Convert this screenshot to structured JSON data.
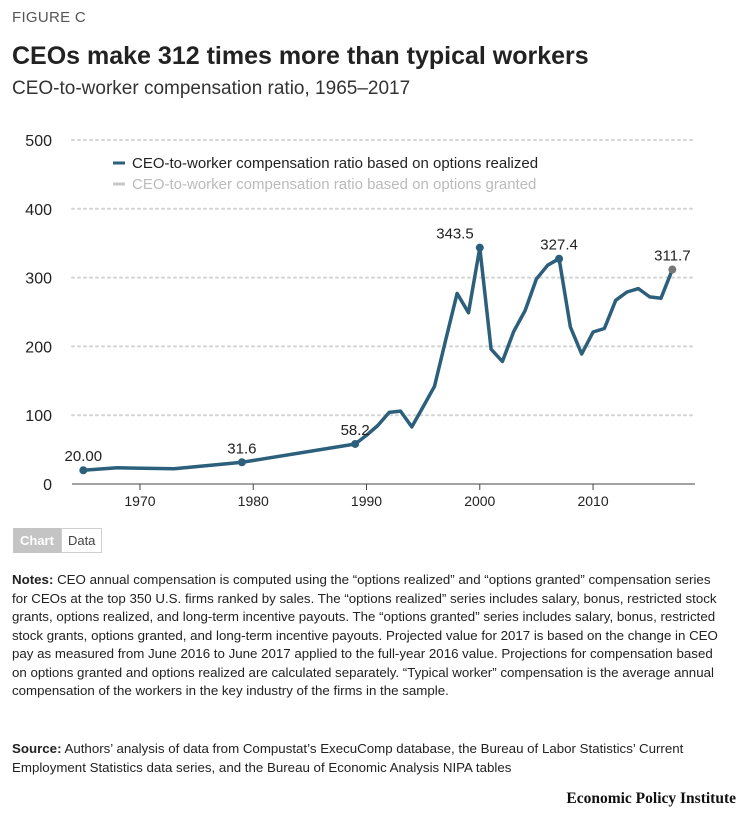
{
  "figure_label": "FIGURE C",
  "title": "CEOs make 312 times more than typical workers",
  "subtitle": "CEO-to-worker compensation ratio, 1965–2017",
  "tabs": {
    "chart": "Chart",
    "data": "Data"
  },
  "notes": {
    "label": "Notes:",
    "text": " CEO annual compensation is computed using the “options realized” and “options granted” compensation series for CEOs at the top 350 U.S. firms ranked by sales. The “options realized” series includes salary, bonus, restricted stock grants, options realized, and long-term incentive payouts. The “options granted” series includes salary, bonus, restricted stock grants, options granted, and long-term incentive payouts. Projected value for 2017 is based on the change in CEO pay as measured from June 2016 to June 2017 applied to the full-year 2016 value. Projections for compensation based on options granted and options realized are calculated separately. “Typical worker” compensation is the average annual compensation of the workers in the key industry of the firms in the sample."
  },
  "source": {
    "label": "Source:",
    "text": " Authors’ analysis of data from Compustat’s ExecuComp database, the Bureau of Labor Statistics’ Current Employment Statistics data series, and the Bureau of Economic Analysis NIPA tables"
  },
  "publisher": "Economic Policy Institute",
  "colors": {
    "realized": "#2c5f7c",
    "granted": "#c7c7c7",
    "projection_point": "#777777",
    "grid": "#d4d4d4",
    "axis": "#444444"
  },
  "chart_data": {
    "type": "line",
    "title": "CEO-to-worker compensation ratio, 1965–2017",
    "xlabel": "",
    "ylabel": "",
    "xlim": [
      1964,
      2019
    ],
    "ylim": [
      0,
      500
    ],
    "y_ticks": [
      0,
      100,
      200,
      300,
      400,
      500
    ],
    "x_ticks": [
      1970,
      1980,
      1990,
      2000,
      2010
    ],
    "grid": true,
    "legend_position": "top-left",
    "series": [
      {
        "name": "CEO-to-worker compensation ratio based on options realized",
        "color": "#2c5f7c",
        "x": [
          1965,
          1968,
          1973,
          1978,
          1979,
          1989,
          1990,
          1991,
          1992,
          1993,
          1994,
          1995,
          1996,
          1997,
          1998,
          1999,
          2000,
          2001,
          2002,
          2003,
          2004,
          2005,
          2006,
          2007,
          2008,
          2009,
          2010,
          2011,
          2012,
          2013,
          2014,
          2015,
          2016,
          2017
        ],
        "y": [
          20.0,
          23.6,
          22.3,
          29.9,
          31.6,
          58.2,
          70.8,
          85.0,
          104.0,
          106.0,
          83.0,
          112.0,
          142.0,
          210.0,
          277.0,
          249.0,
          343.5,
          196.0,
          178.0,
          222.0,
          252.0,
          298.0,
          318.0,
          327.4,
          228.0,
          189.0,
          221.0,
          226.0,
          267.0,
          279.0,
          284.0,
          272.0,
          270.0,
          311.7
        ]
      },
      {
        "name": "CEO-to-worker compensation ratio based on options granted",
        "color": "#c7c7c7",
        "x": [],
        "y": []
      }
    ],
    "data_labels": [
      {
        "x": 1965,
        "y": 20.0,
        "text": "20.00"
      },
      {
        "x": 1979,
        "y": 31.6,
        "text": "31.6"
      },
      {
        "x": 1989,
        "y": 58.2,
        "text": "58.2"
      },
      {
        "x": 2000,
        "y": 343.5,
        "text": "343.5"
      },
      {
        "x": 2007,
        "y": 327.4,
        "text": "327.4"
      },
      {
        "x": 2017,
        "y": 311.7,
        "text": "311.7"
      }
    ]
  }
}
